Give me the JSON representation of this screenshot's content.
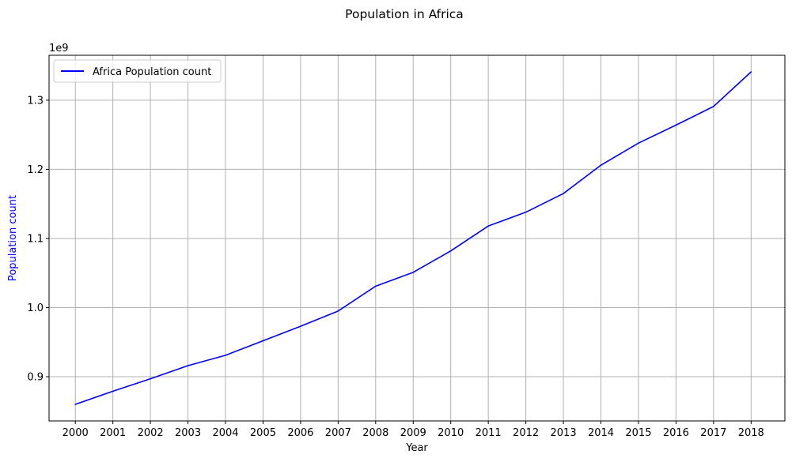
{
  "chart_data": {
    "type": "line",
    "title": "Population in Africa",
    "xlabel": "Year",
    "ylabel": "Population count",
    "y_offset_label": "1e9",
    "x": [
      2000,
      2001,
      2002,
      2003,
      2004,
      2005,
      2006,
      2007,
      2008,
      2009,
      2010,
      2011,
      2012,
      2013,
      2014,
      2015,
      2016,
      2017,
      2018
    ],
    "x_ticks": [
      "2000",
      "2001",
      "2002",
      "2003",
      "2004",
      "2005",
      "2006",
      "2007",
      "2008",
      "2009",
      "2010",
      "2011",
      "2012",
      "2013",
      "2014",
      "2015",
      "2016",
      "2017",
      "2018"
    ],
    "series": [
      {
        "name": "Africa Population count",
        "color": "#0000ff",
        "values": [
          860000000,
          879000000,
          897000000,
          916000000,
          931000000,
          952000000,
          973000000,
          995000000,
          1031000000,
          1051000000,
          1082000000,
          1118000000,
          1138000000,
          1165000000,
          1206000000,
          1238000000,
          1264000000,
          1291000000,
          1341000000
        ]
      }
    ],
    "y_ticks": [
      0.9,
      1.0,
      1.1,
      1.2,
      1.3
    ],
    "y_tick_labels": [
      "0.9",
      "1.0",
      "1.1",
      "1.2",
      "1.3"
    ],
    "xlim": [
      1999.3,
      2018.9
    ],
    "ylim": [
      836000000,
      1365000000
    ],
    "y_scale": 1000000000,
    "grid": true,
    "legend_position": "upper-left",
    "ylabel_color": "#0000ff"
  }
}
